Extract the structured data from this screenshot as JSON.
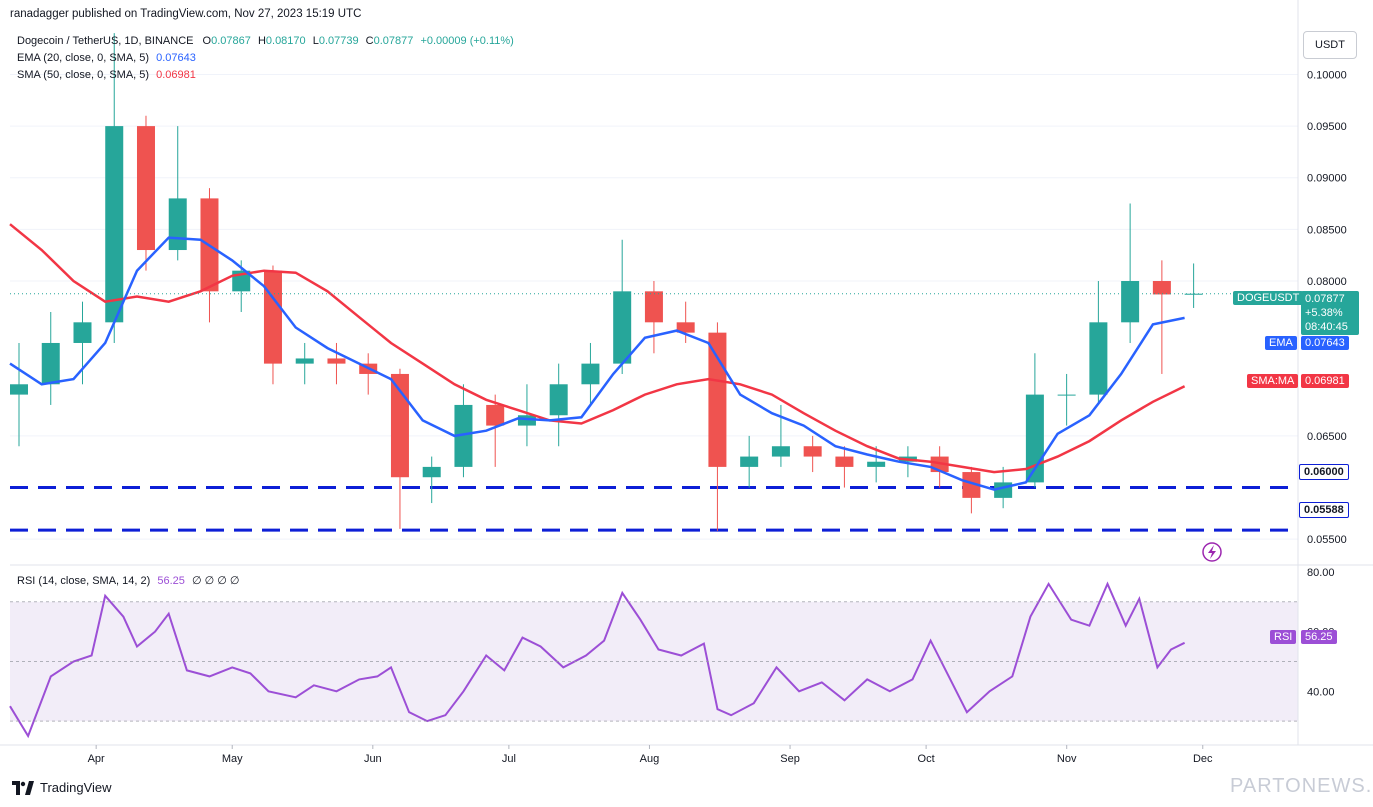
{
  "header": {
    "published_by": "ranadagger published on TradingView.com, Nov 27, 2023 15:19 UTC"
  },
  "legend": {
    "symbol": "Dogecoin / TetherUS, 1D, BINANCE",
    "o_label": "O",
    "o": "0.07867",
    "h_label": "H",
    "h": "0.08170",
    "l_label": "L",
    "l": "0.07739",
    "c_label": "C",
    "c": "0.07877",
    "change": "+0.00009 (+0.11%)",
    "ema_label": "EMA (20, close, 0, SMA, 5)",
    "ema_value": "0.07643",
    "sma_label": "SMA (50, close, 0, SMA, 5)",
    "sma_value": "0.06981",
    "rsi_label": "RSI (14, close, SMA, 14, 2)",
    "rsi_value": "56.25",
    "rsi_extra": "∅ ∅ ∅ ∅"
  },
  "price_axis": {
    "unit": "USDT",
    "ticks": [
      "0.10000",
      "0.09500",
      "0.09000",
      "0.08500",
      "0.08000",
      "0.06500",
      "0.05500"
    ]
  },
  "rsi_axis": {
    "ticks": [
      "80.00",
      "60.00",
      "40.00"
    ]
  },
  "time_axis": {
    "ticks": [
      "Apr",
      "May",
      "Jun",
      "Jul",
      "Aug",
      "Sep",
      "Oct",
      "Nov",
      "Dec"
    ]
  },
  "tags": {
    "symbol": "DOGEUSDT",
    "price": "0.07877",
    "pct": "+5.38%",
    "countdown": "08:40:45",
    "ema_tag": "EMA",
    "ema": "0.07643",
    "sma_tag": "SMA:MA",
    "sma": "0.06981",
    "support1": "0.06000",
    "support2": "0.05588",
    "rsi_tag": "RSI",
    "rsi": "56.25"
  },
  "footer": {
    "brand": "TradingView",
    "watermark": "PARTONEWS.IR"
  },
  "colors": {
    "up": "#26a69a",
    "down": "#ef5350",
    "ema": "#2962ff",
    "sma": "#f23645",
    "rsi": "#9c4fd6",
    "support": "#0d1fd6",
    "rsi_band": "#ede7f6"
  },
  "chart_data": [
    {
      "type": "candlestick",
      "title": "Dogecoin / TetherUS, 1D, BINANCE",
      "ylabel": "USDT",
      "ylim": [
        0.0525,
        0.1045
      ],
      "x_range": [
        "2023-03-13",
        "2023-11-27"
      ],
      "candles_approx_weekly": [
        {
          "date": "2023-03-13",
          "o": 0.069,
          "h": 0.074,
          "l": 0.064,
          "c": 0.07
        },
        {
          "date": "2023-03-20",
          "o": 0.07,
          "h": 0.077,
          "l": 0.068,
          "c": 0.074
        },
        {
          "date": "2023-03-27",
          "o": 0.074,
          "h": 0.078,
          "l": 0.07,
          "c": 0.076
        },
        {
          "date": "2023-04-03",
          "o": 0.076,
          "h": 0.104,
          "l": 0.074,
          "c": 0.095
        },
        {
          "date": "2023-04-10",
          "o": 0.095,
          "h": 0.096,
          "l": 0.081,
          "c": 0.083
        },
        {
          "date": "2023-04-17",
          "o": 0.083,
          "h": 0.095,
          "l": 0.082,
          "c": 0.088
        },
        {
          "date": "2023-04-24",
          "o": 0.088,
          "h": 0.089,
          "l": 0.076,
          "c": 0.079
        },
        {
          "date": "2023-05-01",
          "o": 0.079,
          "h": 0.082,
          "l": 0.077,
          "c": 0.081
        },
        {
          "date": "2023-05-08",
          "o": 0.081,
          "h": 0.0815,
          "l": 0.07,
          "c": 0.072
        },
        {
          "date": "2023-05-15",
          "o": 0.072,
          "h": 0.074,
          "l": 0.07,
          "c": 0.0725
        },
        {
          "date": "2023-05-22",
          "o": 0.0725,
          "h": 0.074,
          "l": 0.07,
          "c": 0.072
        },
        {
          "date": "2023-05-29",
          "o": 0.072,
          "h": 0.073,
          "l": 0.069,
          "c": 0.071
        },
        {
          "date": "2023-06-05",
          "o": 0.071,
          "h": 0.0715,
          "l": 0.056,
          "c": 0.061
        },
        {
          "date": "2023-06-12",
          "o": 0.061,
          "h": 0.063,
          "l": 0.0585,
          "c": 0.062
        },
        {
          "date": "2023-06-19",
          "o": 0.062,
          "h": 0.07,
          "l": 0.061,
          "c": 0.068
        },
        {
          "date": "2023-06-26",
          "o": 0.068,
          "h": 0.069,
          "l": 0.062,
          "c": 0.066
        },
        {
          "date": "2023-07-03",
          "o": 0.066,
          "h": 0.07,
          "l": 0.064,
          "c": 0.067
        },
        {
          "date": "2023-07-10",
          "o": 0.067,
          "h": 0.072,
          "l": 0.064,
          "c": 0.07
        },
        {
          "date": "2023-07-17",
          "o": 0.07,
          "h": 0.074,
          "l": 0.068,
          "c": 0.072
        },
        {
          "date": "2023-07-24",
          "o": 0.072,
          "h": 0.084,
          "l": 0.071,
          "c": 0.079
        },
        {
          "date": "2023-07-31",
          "o": 0.079,
          "h": 0.08,
          "l": 0.073,
          "c": 0.076
        },
        {
          "date": "2023-08-07",
          "o": 0.076,
          "h": 0.078,
          "l": 0.074,
          "c": 0.075
        },
        {
          "date": "2023-08-14",
          "o": 0.075,
          "h": 0.076,
          "l": 0.0558,
          "c": 0.062
        },
        {
          "date": "2023-08-21",
          "o": 0.062,
          "h": 0.065,
          "l": 0.06,
          "c": 0.063
        },
        {
          "date": "2023-08-28",
          "o": 0.063,
          "h": 0.068,
          "l": 0.062,
          "c": 0.064
        },
        {
          "date": "2023-09-04",
          "o": 0.064,
          "h": 0.065,
          "l": 0.0615,
          "c": 0.063
        },
        {
          "date": "2023-09-11",
          "o": 0.063,
          "h": 0.064,
          "l": 0.06,
          "c": 0.062
        },
        {
          "date": "2023-09-18",
          "o": 0.062,
          "h": 0.064,
          "l": 0.0605,
          "c": 0.0625
        },
        {
          "date": "2023-09-25",
          "o": 0.0625,
          "h": 0.064,
          "l": 0.061,
          "c": 0.063
        },
        {
          "date": "2023-10-02",
          "o": 0.063,
          "h": 0.064,
          "l": 0.06,
          "c": 0.0615
        },
        {
          "date": "2023-10-09",
          "o": 0.0615,
          "h": 0.062,
          "l": 0.0575,
          "c": 0.059
        },
        {
          "date": "2023-10-16",
          "o": 0.059,
          "h": 0.062,
          "l": 0.058,
          "c": 0.0605
        },
        {
          "date": "2023-10-23",
          "o": 0.0605,
          "h": 0.073,
          "l": 0.06,
          "c": 0.069
        },
        {
          "date": "2023-10-30",
          "o": 0.069,
          "h": 0.071,
          "l": 0.066,
          "c": 0.069
        },
        {
          "date": "2023-11-06",
          "o": 0.069,
          "h": 0.08,
          "l": 0.068,
          "c": 0.076
        },
        {
          "date": "2023-11-13",
          "o": 0.076,
          "h": 0.0875,
          "l": 0.074,
          "c": 0.08
        },
        {
          "date": "2023-11-20",
          "o": 0.08,
          "h": 0.082,
          "l": 0.071,
          "c": 0.0787
        },
        {
          "date": "2023-11-27",
          "o": 0.07867,
          "h": 0.0817,
          "l": 0.07739,
          "c": 0.07877
        }
      ],
      "ema20": [
        {
          "date": "2023-03-13",
          "y": 0.072
        },
        {
          "date": "2023-03-20",
          "y": 0.07
        },
        {
          "date": "2023-03-27",
          "y": 0.0705
        },
        {
          "date": "2023-04-03",
          "y": 0.074
        },
        {
          "date": "2023-04-10",
          "y": 0.081
        },
        {
          "date": "2023-04-17",
          "y": 0.0842
        },
        {
          "date": "2023-04-24",
          "y": 0.084
        },
        {
          "date": "2023-05-01",
          "y": 0.082
        },
        {
          "date": "2023-05-08",
          "y": 0.0795
        },
        {
          "date": "2023-05-15",
          "y": 0.0755
        },
        {
          "date": "2023-05-22",
          "y": 0.0735
        },
        {
          "date": "2023-05-29",
          "y": 0.072
        },
        {
          "date": "2023-06-05",
          "y": 0.0705
        },
        {
          "date": "2023-06-12",
          "y": 0.0665
        },
        {
          "date": "2023-06-19",
          "y": 0.065
        },
        {
          "date": "2023-06-26",
          "y": 0.0655
        },
        {
          "date": "2023-07-03",
          "y": 0.0667
        },
        {
          "date": "2023-07-10",
          "y": 0.0665
        },
        {
          "date": "2023-07-17",
          "y": 0.0668
        },
        {
          "date": "2023-07-24",
          "y": 0.071
        },
        {
          "date": "2023-07-31",
          "y": 0.0745
        },
        {
          "date": "2023-08-07",
          "y": 0.0752
        },
        {
          "date": "2023-08-14",
          "y": 0.074
        },
        {
          "date": "2023-08-21",
          "y": 0.069
        },
        {
          "date": "2023-08-28",
          "y": 0.0672
        },
        {
          "date": "2023-09-04",
          "y": 0.066
        },
        {
          "date": "2023-09-11",
          "y": 0.064
        },
        {
          "date": "2023-09-18",
          "y": 0.0632
        },
        {
          "date": "2023-09-25",
          "y": 0.0625
        },
        {
          "date": "2023-10-02",
          "y": 0.062
        },
        {
          "date": "2023-10-09",
          "y": 0.0607
        },
        {
          "date": "2023-10-16",
          "y": 0.0598
        },
        {
          "date": "2023-10-23",
          "y": 0.0605
        },
        {
          "date": "2023-10-30",
          "y": 0.0652
        },
        {
          "date": "2023-11-06",
          "y": 0.067
        },
        {
          "date": "2023-11-13",
          "y": 0.071
        },
        {
          "date": "2023-11-20",
          "y": 0.0758
        },
        {
          "date": "2023-11-27",
          "y": 0.07643
        }
      ],
      "sma50": [
        {
          "date": "2023-03-13",
          "y": 0.0855
        },
        {
          "date": "2023-03-20",
          "y": 0.083
        },
        {
          "date": "2023-03-27",
          "y": 0.08
        },
        {
          "date": "2023-04-03",
          "y": 0.078
        },
        {
          "date": "2023-04-10",
          "y": 0.0785
        },
        {
          "date": "2023-04-17",
          "y": 0.078
        },
        {
          "date": "2023-04-24",
          "y": 0.079
        },
        {
          "date": "2023-05-01",
          "y": 0.0805
        },
        {
          "date": "2023-05-08",
          "y": 0.081
        },
        {
          "date": "2023-05-15",
          "y": 0.0808
        },
        {
          "date": "2023-05-22",
          "y": 0.079
        },
        {
          "date": "2023-05-29",
          "y": 0.0765
        },
        {
          "date": "2023-06-05",
          "y": 0.074
        },
        {
          "date": "2023-06-12",
          "y": 0.072
        },
        {
          "date": "2023-06-19",
          "y": 0.07
        },
        {
          "date": "2023-06-26",
          "y": 0.0685
        },
        {
          "date": "2023-07-03",
          "y": 0.0675
        },
        {
          "date": "2023-07-10",
          "y": 0.0665
        },
        {
          "date": "2023-07-17",
          "y": 0.0662
        },
        {
          "date": "2023-07-24",
          "y": 0.0675
        },
        {
          "date": "2023-07-31",
          "y": 0.069
        },
        {
          "date": "2023-08-07",
          "y": 0.07
        },
        {
          "date": "2023-08-14",
          "y": 0.0705
        },
        {
          "date": "2023-08-21",
          "y": 0.07
        },
        {
          "date": "2023-08-28",
          "y": 0.069
        },
        {
          "date": "2023-09-04",
          "y": 0.0672
        },
        {
          "date": "2023-09-11",
          "y": 0.0655
        },
        {
          "date": "2023-09-18",
          "y": 0.064
        },
        {
          "date": "2023-09-25",
          "y": 0.0628
        },
        {
          "date": "2023-10-02",
          "y": 0.0625
        },
        {
          "date": "2023-10-09",
          "y": 0.062
        },
        {
          "date": "2023-10-16",
          "y": 0.0615
        },
        {
          "date": "2023-10-23",
          "y": 0.0618
        },
        {
          "date": "2023-10-30",
          "y": 0.063
        },
        {
          "date": "2023-11-06",
          "y": 0.0645
        },
        {
          "date": "2023-11-13",
          "y": 0.0665
        },
        {
          "date": "2023-11-20",
          "y": 0.0683
        },
        {
          "date": "2023-11-27",
          "y": 0.06981
        }
      ],
      "current_price": 0.07877,
      "horizontal_levels": [
        0.06,
        0.05588
      ]
    },
    {
      "type": "line",
      "title": "RSI (14, close, SMA, 14, 2)",
      "ylim": [
        22,
        82
      ],
      "band": [
        30,
        70
      ],
      "midline": 50,
      "x_range": [
        "2023-03-13",
        "2023-11-27"
      ],
      "rsi": [
        {
          "date": "2023-03-13",
          "y": 35
        },
        {
          "date": "2023-03-17",
          "y": 25
        },
        {
          "date": "2023-03-22",
          "y": 45
        },
        {
          "date": "2023-03-27",
          "y": 50
        },
        {
          "date": "2023-03-31",
          "y": 52
        },
        {
          "date": "2023-04-03",
          "y": 72
        },
        {
          "date": "2023-04-07",
          "y": 65
        },
        {
          "date": "2023-04-10",
          "y": 55
        },
        {
          "date": "2023-04-14",
          "y": 60
        },
        {
          "date": "2023-04-17",
          "y": 66
        },
        {
          "date": "2023-04-21",
          "y": 47
        },
        {
          "date": "2023-04-26",
          "y": 45
        },
        {
          "date": "2023-05-01",
          "y": 48
        },
        {
          "date": "2023-05-05",
          "y": 46
        },
        {
          "date": "2023-05-09",
          "y": 40
        },
        {
          "date": "2023-05-15",
          "y": 38
        },
        {
          "date": "2023-05-19",
          "y": 42
        },
        {
          "date": "2023-05-24",
          "y": 40
        },
        {
          "date": "2023-05-29",
          "y": 44
        },
        {
          "date": "2023-06-02",
          "y": 45
        },
        {
          "date": "2023-06-05",
          "y": 48
        },
        {
          "date": "2023-06-09",
          "y": 33
        },
        {
          "date": "2023-06-13",
          "y": 30
        },
        {
          "date": "2023-06-17",
          "y": 32
        },
        {
          "date": "2023-06-21",
          "y": 40
        },
        {
          "date": "2023-06-26",
          "y": 52
        },
        {
          "date": "2023-06-30",
          "y": 47
        },
        {
          "date": "2023-07-04",
          "y": 58
        },
        {
          "date": "2023-07-08",
          "y": 55
        },
        {
          "date": "2023-07-13",
          "y": 48
        },
        {
          "date": "2023-07-18",
          "y": 52
        },
        {
          "date": "2023-07-22",
          "y": 57
        },
        {
          "date": "2023-07-26",
          "y": 73
        },
        {
          "date": "2023-07-30",
          "y": 64
        },
        {
          "date": "2023-08-03",
          "y": 54
        },
        {
          "date": "2023-08-08",
          "y": 52
        },
        {
          "date": "2023-08-13",
          "y": 56
        },
        {
          "date": "2023-08-16",
          "y": 34
        },
        {
          "date": "2023-08-19",
          "y": 32
        },
        {
          "date": "2023-08-24",
          "y": 36
        },
        {
          "date": "2023-08-29",
          "y": 48
        },
        {
          "date": "2023-09-03",
          "y": 40
        },
        {
          "date": "2023-09-08",
          "y": 43
        },
        {
          "date": "2023-09-13",
          "y": 37
        },
        {
          "date": "2023-09-18",
          "y": 44
        },
        {
          "date": "2023-09-23",
          "y": 40
        },
        {
          "date": "2023-09-28",
          "y": 44
        },
        {
          "date": "2023-10-02",
          "y": 57
        },
        {
          "date": "2023-10-06",
          "y": 45
        },
        {
          "date": "2023-10-10",
          "y": 33
        },
        {
          "date": "2023-10-15",
          "y": 40
        },
        {
          "date": "2023-10-20",
          "y": 45
        },
        {
          "date": "2023-10-24",
          "y": 65
        },
        {
          "date": "2023-10-28",
          "y": 76
        },
        {
          "date": "2023-11-02",
          "y": 64
        },
        {
          "date": "2023-11-06",
          "y": 62
        },
        {
          "date": "2023-11-10",
          "y": 76
        },
        {
          "date": "2023-11-14",
          "y": 62
        },
        {
          "date": "2023-11-17",
          "y": 71
        },
        {
          "date": "2023-11-21",
          "y": 48
        },
        {
          "date": "2023-11-24",
          "y": 54
        },
        {
          "date": "2023-11-27",
          "y": 56.25
        }
      ]
    }
  ]
}
